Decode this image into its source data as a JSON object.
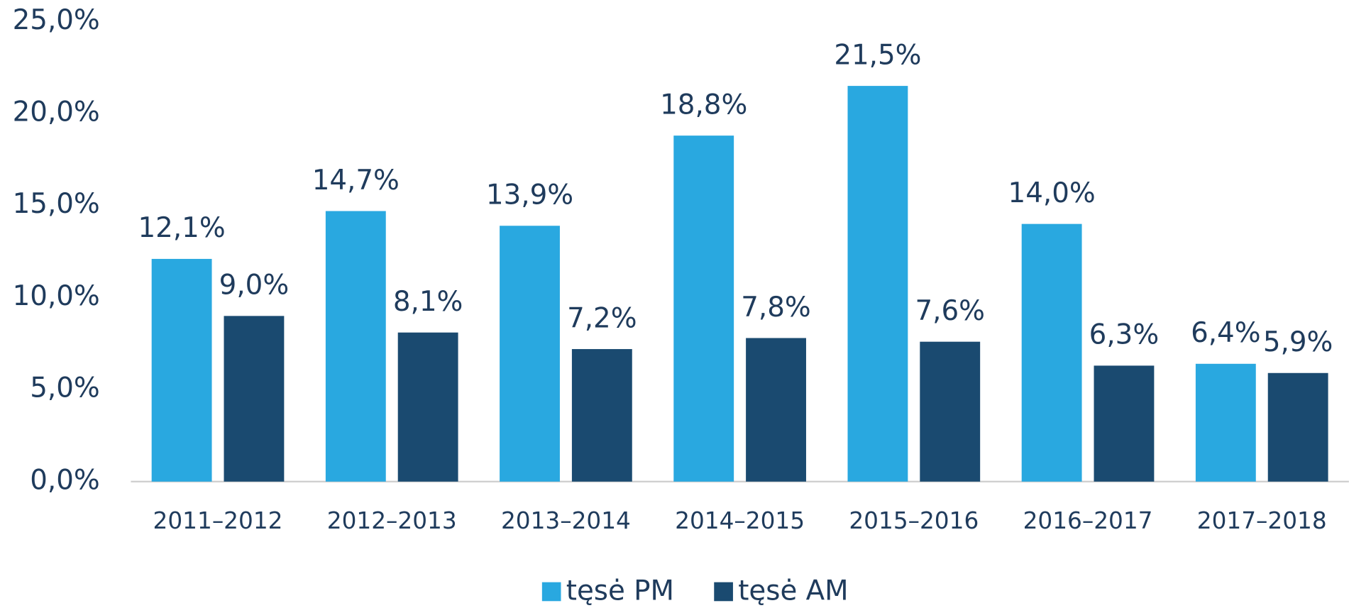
{
  "chart_data": {
    "type": "bar",
    "categories": [
      "2011–2012",
      "2012–2013",
      "2013–2014",
      "2014–2015",
      "2015–2016",
      "2016–2017",
      "2017–2018"
    ],
    "series": [
      {
        "name": "tęsė PM",
        "color": "#29a8e0",
        "values": [
          12.1,
          14.7,
          13.9,
          18.8,
          21.5,
          14.0,
          6.4
        ],
        "value_labels": [
          "12,1%",
          "14,7%",
          "13,9%",
          "18,8%",
          "21,5%",
          "14,0%",
          "6,4%"
        ]
      },
      {
        "name": "tęsė AM",
        "color": "#1a4a70",
        "values": [
          9.0,
          8.1,
          7.2,
          7.8,
          7.6,
          6.3,
          5.9
        ],
        "value_labels": [
          "9,0%",
          "8,1%",
          "7,2%",
          "7,8%",
          "7,6%",
          "6,3%",
          "5,9%"
        ]
      }
    ],
    "ylim": [
      0,
      25
    ],
    "yticks": [
      {
        "value": 0,
        "label": "0,0%"
      },
      {
        "value": 5,
        "label": "5,0%"
      },
      {
        "value": 10,
        "label": "10,0%"
      },
      {
        "value": 15,
        "label": "15,0%"
      },
      {
        "value": 20,
        "label": "20,0%"
      },
      {
        "value": 25,
        "label": "25,0%"
      }
    ],
    "legend": "bottom"
  }
}
